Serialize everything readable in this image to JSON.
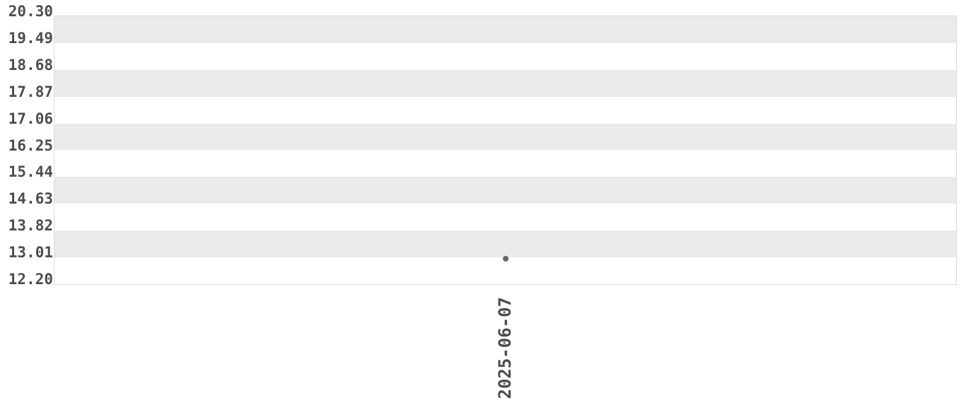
{
  "chart_data": {
    "type": "scatter",
    "title": "",
    "xlabel": "",
    "ylabel": "",
    "x_tick_labels": [
      "2025-06-07"
    ],
    "y_tick_labels": [
      "20.30",
      "19.49",
      "18.68",
      "17.87",
      "17.06",
      "16.25",
      "15.44",
      "14.63",
      "13.82",
      "13.01",
      "12.20"
    ],
    "y_ticks": [
      20.3,
      19.49,
      18.68,
      17.87,
      17.06,
      16.25,
      15.44,
      14.63,
      13.82,
      13.01,
      12.2
    ],
    "ylim": [
      12.2,
      20.3
    ],
    "y_tick_step": 0.81,
    "series": [
      {
        "name": "",
        "points": [
          {
            "x": "2025-06-07",
            "y": 12.97
          }
        ]
      }
    ],
    "legend_position": "none",
    "grid": "alternating horizontal stripe bands, topmost band shaded",
    "colors": {
      "band_fill": "#eaeaea",
      "plot_background": "#ffffff",
      "plot_border": "#dbdbdb",
      "tick_label_text": "#4d4d4d",
      "point_fill": "#666666"
    }
  }
}
